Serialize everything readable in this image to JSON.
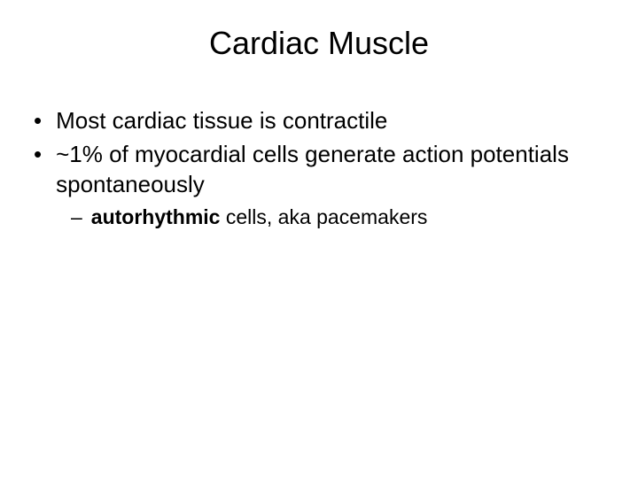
{
  "slide": {
    "title": "Cardiac Muscle",
    "bullets": [
      {
        "marker": "•",
        "text": "Most cardiac tissue is contractile"
      },
      {
        "marker": "•",
        "text": "~1% of myocardial cells generate action potentials spontaneously"
      }
    ],
    "sub_bullet": {
      "marker": "–",
      "bold_part": "autorhythmic",
      "rest_part": " cells, aka pacemakers"
    }
  },
  "styling": {
    "background_color": "#ffffff",
    "text_color": "#000000",
    "title_fontsize": 36,
    "bullet_fontsize": 26,
    "sub_bullet_fontsize": 23,
    "font_family": "Arial"
  }
}
